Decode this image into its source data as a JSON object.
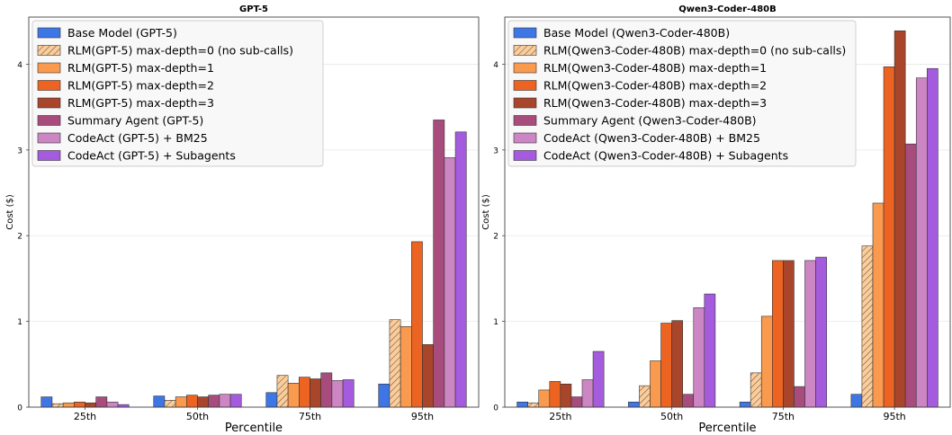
{
  "chart_data": [
    {
      "type": "bar",
      "title": "GPT-5",
      "xlabel": "Percentile",
      "ylabel": "Cost ($)",
      "ylim": [
        0,
        4.55
      ],
      "yticks": [
        0,
        1,
        2,
        3,
        4
      ],
      "grid": true,
      "legend_position": "top-left",
      "categories": [
        "25th",
        "50th",
        "75th",
        "95th"
      ],
      "series": [
        {
          "name": "Base Model (GPT-5)",
          "color": "#3e76e6",
          "hatch": false,
          "values": [
            0.12,
            0.13,
            0.17,
            0.27
          ]
        },
        {
          "name": "RLM(GPT-5) max-depth=0 (no sub-calls)",
          "color": "#f9ce9f",
          "hatch": true,
          "values": [
            0.04,
            0.08,
            0.37,
            1.02
          ]
        },
        {
          "name": "RLM(GPT-5) max-depth=1",
          "color": "#f99a4f",
          "hatch": false,
          "values": [
            0.05,
            0.12,
            0.28,
            0.94
          ]
        },
        {
          "name": "RLM(GPT-5) max-depth=2",
          "color": "#ec6322",
          "hatch": false,
          "values": [
            0.06,
            0.14,
            0.35,
            1.93
          ]
        },
        {
          "name": "RLM(GPT-5) max-depth=3",
          "color": "#a8452b",
          "hatch": false,
          "values": [
            0.05,
            0.12,
            0.33,
            0.73
          ]
        },
        {
          "name": "Summary Agent (GPT-5)",
          "color": "#a74c7c",
          "hatch": false,
          "values": [
            0.12,
            0.14,
            0.4,
            3.35
          ]
        },
        {
          "name": "CodeAct (GPT-5) + BM25",
          "color": "#cc86c4",
          "hatch": false,
          "values": [
            0.06,
            0.15,
            0.31,
            2.91
          ]
        },
        {
          "name": "CodeAct (GPT-5) + Subagents",
          "color": "#a55bdd",
          "hatch": false,
          "values": [
            0.03,
            0.15,
            0.32,
            3.21
          ]
        }
      ]
    },
    {
      "type": "bar",
      "title": "Qwen3-Coder-480B",
      "xlabel": "Percentile",
      "ylabel": "Cost ($)",
      "ylim": [
        0,
        4.55
      ],
      "yticks": [
        0,
        1,
        2,
        3,
        4
      ],
      "grid": true,
      "legend_position": "top-left",
      "categories": [
        "25th",
        "50th",
        "75th",
        "95th"
      ],
      "series": [
        {
          "name": "Base Model (Qwen3-Coder-480B)",
          "color": "#3e76e6",
          "hatch": false,
          "values": [
            0.06,
            0.06,
            0.06,
            0.15
          ]
        },
        {
          "name": "RLM(Qwen3-Coder-480B) max-depth=0 (no sub-calls)",
          "color": "#f9ce9f",
          "hatch": true,
          "values": [
            0.05,
            0.25,
            0.4,
            1.88
          ]
        },
        {
          "name": "RLM(Qwen3-Coder-480B) max-depth=1",
          "color": "#f99a4f",
          "hatch": false,
          "values": [
            0.2,
            0.54,
            1.06,
            2.38
          ]
        },
        {
          "name": "RLM(Qwen3-Coder-480B) max-depth=2",
          "color": "#ec6322",
          "hatch": false,
          "values": [
            0.3,
            0.98,
            1.71,
            3.97
          ]
        },
        {
          "name": "RLM(Qwen3-Coder-480B) max-depth=3",
          "color": "#a8452b",
          "hatch": false,
          "values": [
            0.27,
            1.01,
            1.71,
            4.39
          ]
        },
        {
          "name": "Summary Agent (Qwen3-Coder-480B)",
          "color": "#a74c7c",
          "hatch": false,
          "values": [
            0.12,
            0.15,
            0.24,
            3.07
          ]
        },
        {
          "name": "CodeAct (Qwen3-Coder-480B) + BM25",
          "color": "#cc86c4",
          "hatch": false,
          "values": [
            0.32,
            1.16,
            1.71,
            3.84
          ]
        },
        {
          "name": "CodeAct (Qwen3-Coder-480B) + Subagents",
          "color": "#a55bdd",
          "hatch": false,
          "values": [
            0.65,
            1.32,
            1.75,
            3.95
          ]
        }
      ]
    }
  ]
}
